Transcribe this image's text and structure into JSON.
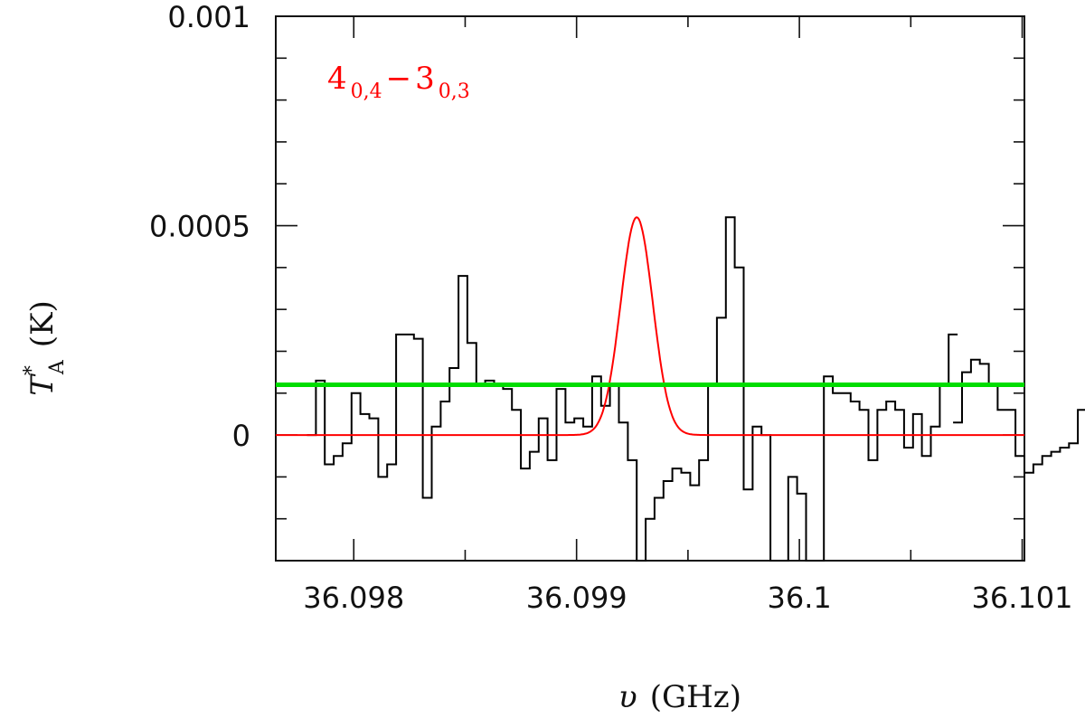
{
  "chart_data": {
    "type": "line",
    "xlabel": {
      "symbol": "υ",
      "unit": "(GHz)"
    },
    "ylabel": {
      "symbol": "T",
      "superscript": "*",
      "subscript": "A",
      "unit": "(K)"
    },
    "xlim": [
      36.09765,
      36.10101
    ],
    "ylim": [
      -0.0003,
      0.001
    ],
    "x_ticks": [
      {
        "value": 36.098,
        "label": "36.098"
      },
      {
        "value": 36.099,
        "label": "36.099"
      },
      {
        "value": 36.1,
        "label": "36.1"
      },
      {
        "value": 36.101,
        "label": "36.101"
      }
    ],
    "y_ticks": [
      {
        "value": 0,
        "label": "0"
      },
      {
        "value": 0.0005,
        "label": "0.0005"
      },
      {
        "value": 0.001,
        "label": "0.001"
      }
    ],
    "x_minor_step": 0.0005,
    "y_minor_step": 0.0001,
    "annotation": {
      "main1": "4",
      "sub1": "0,4",
      "dash": "−",
      "main2": "3",
      "sub2": "0,3",
      "color": "#ff0000"
    },
    "series": [
      {
        "style": "step",
        "color": "#000000",
        "x_start": 36.09779,
        "x_step": 4e-05,
        "values": [
          0.0,
          0.00013,
          -7e-05,
          -5e-05,
          -2e-05,
          0.0001,
          5e-05,
          4e-05,
          -0.0001,
          -7e-05,
          0.00024,
          0.00024,
          0.00023,
          -0.00015,
          2e-05,
          8e-05,
          0.00016,
          0.00038,
          0.00022,
          0.00012,
          0.00013,
          0.00012,
          0.00011,
          6e-05,
          -8e-05,
          -4e-05,
          4e-05,
          -6e-05,
          0.00011,
          3e-05,
          4e-05,
          2e-05,
          0.00014,
          7e-05,
          0.00012,
          3e-05,
          -6e-05,
          -0.0003,
          -0.0002,
          -0.00015,
          -0.00011,
          -8e-05,
          -9e-05,
          -0.00012,
          -6e-05,
          0.00012,
          0.00028,
          0.00052,
          0.0004,
          -0.00013,
          2e-05,
          0.0,
          -0.0003,
          -0.0003,
          -0.0001,
          -0.00014,
          -0.0003,
          -0.0003,
          0.00014,
          0.0001,
          0.0001,
          8e-05,
          6e-05,
          -6e-05,
          6e-05,
          8e-05,
          6e-05,
          -3e-05,
          5e-05,
          -5e-05,
          2e-05,
          0.00012,
          0.00024
        ]
      },
      {
        "style": "step",
        "color": "#000000",
        "x_start": 36.10069,
        "x_step": 4e-05,
        "values": [
          3e-05,
          0.00015,
          0.00018,
          0.00017,
          0.00012,
          6e-05,
          6e-05,
          -5e-05,
          -9e-05,
          -7e-05,
          -5e-05,
          -4e-05,
          -3e-05,
          -2e-05,
          6e-05,
          0.0,
          -2e-05,
          -3e-05,
          -6e-05,
          -9e-05,
          -0.00013,
          -4e-05,
          7e-05
        ]
      },
      {
        "style": "gaussian",
        "color": "#ff0000",
        "amplitude": 0.00052,
        "center": 36.09927,
        "fwhm": 0.00017
      },
      {
        "style": "hline",
        "color": "#00dd00",
        "value": 0.00012
      }
    ]
  }
}
